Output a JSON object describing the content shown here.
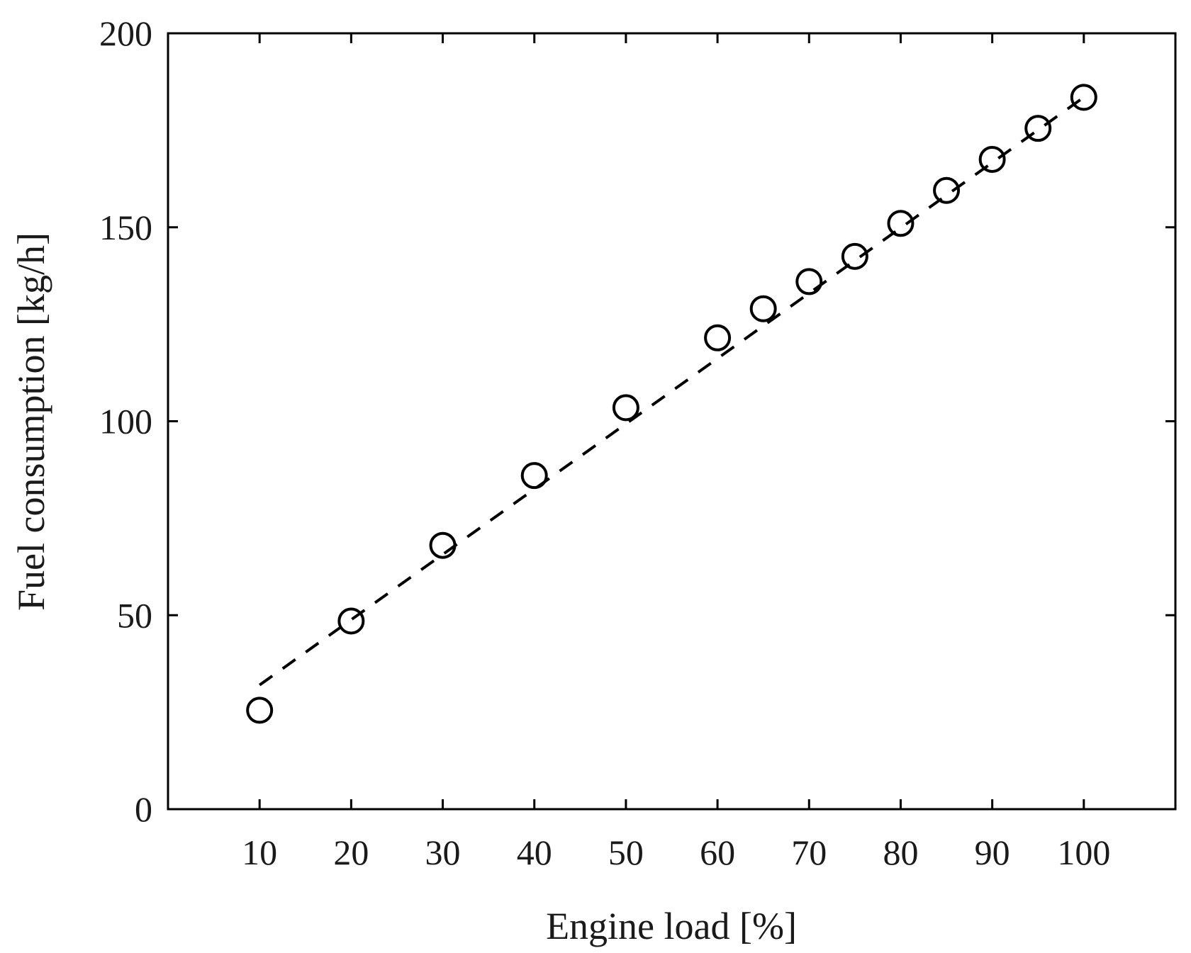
{
  "chart_data": {
    "type": "scatter",
    "title": "",
    "xlabel": "Engine load [%]",
    "ylabel": "Fuel consumption [kg/h]",
    "xlim": [
      0,
      110
    ],
    "ylim": [
      0,
      200
    ],
    "xticks": [
      10,
      20,
      30,
      40,
      50,
      60,
      70,
      80,
      90,
      100
    ],
    "yticks": [
      0,
      50,
      100,
      150,
      200
    ],
    "grid": false,
    "legend": "none",
    "series": [
      {
        "marker": "open-circle",
        "x": [
          10,
          20,
          30,
          40,
          50,
          60,
          65,
          70,
          75,
          80,
          85,
          90,
          95,
          100
        ],
        "y": [
          25.5,
          48.5,
          68,
          86,
          103.5,
          121.5,
          129,
          136,
          142.5,
          151,
          159.5,
          167.5,
          175.5,
          183.5
        ]
      }
    ],
    "fit_line": {
      "style": "dashed",
      "x": [
        10,
        100
      ],
      "y": [
        32,
        183.5
      ]
    },
    "colors": {
      "marks": "#000000",
      "text": "#1a1a1a"
    }
  }
}
